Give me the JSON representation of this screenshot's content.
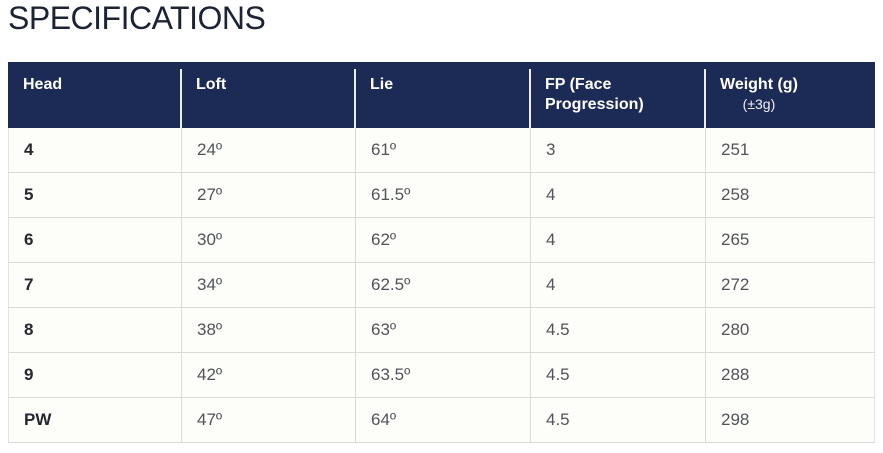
{
  "page": {
    "title": "SPECIFICATIONS"
  },
  "colors": {
    "header_bg": "#1c2b55",
    "header_text": "#ffffff",
    "title_text": "#1c2433",
    "body_text": "#515459",
    "head_col_text": "#26282e",
    "grid_line": "#dadad8"
  },
  "table": {
    "columns": [
      {
        "label": "Head"
      },
      {
        "label": "Loft"
      },
      {
        "label": "Lie"
      },
      {
        "label": "FP (Face Progression)"
      },
      {
        "label": "Weight (g)",
        "sublabel": "(±3g)"
      }
    ],
    "rows": [
      {
        "head": "4",
        "loft": "24º",
        "lie": "61º",
        "fp": "3",
        "weight": "251"
      },
      {
        "head": "5",
        "loft": "27º",
        "lie": "61.5º",
        "fp": "4",
        "weight": "258"
      },
      {
        "head": "6",
        "loft": "30º",
        "lie": "62º",
        "fp": "4",
        "weight": "265"
      },
      {
        "head": "7",
        "loft": "34º",
        "lie": "62.5º",
        "fp": "4",
        "weight": "272"
      },
      {
        "head": "8",
        "loft": "38º",
        "lie": "63º",
        "fp": "4.5",
        "weight": "280"
      },
      {
        "head": "9",
        "loft": "42º",
        "lie": "63.5º",
        "fp": "4.5",
        "weight": "288"
      },
      {
        "head": "PW",
        "loft": "47º",
        "lie": "64º",
        "fp": "4.5",
        "weight": "298"
      }
    ]
  }
}
